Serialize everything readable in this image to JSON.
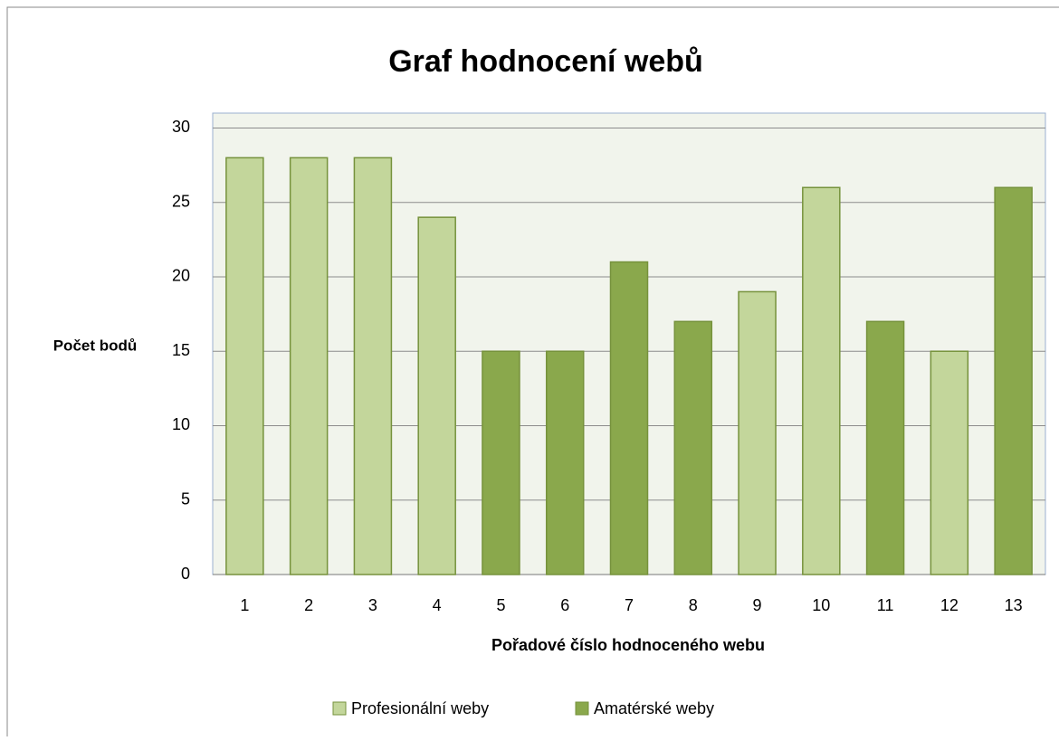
{
  "chart_data": {
    "type": "bar",
    "title": "Graf hodnocení webů",
    "xlabel": "Pořadové číslo hodnoceného webu",
    "ylabel": "Počet bodů",
    "categories": [
      "1",
      "2",
      "3",
      "4",
      "5",
      "6",
      "7",
      "8",
      "9",
      "10",
      "11",
      "12",
      "13"
    ],
    "series": [
      {
        "name": "Profesionální weby",
        "color": "#c3d69b",
        "values": [
          28,
          28,
          28,
          24,
          null,
          null,
          null,
          null,
          19,
          26,
          null,
          15,
          null
        ]
      },
      {
        "name": "Amatérské weby",
        "color": "#8aa84c",
        "values": [
          null,
          null,
          null,
          null,
          15,
          15,
          21,
          17,
          null,
          null,
          17,
          null,
          26
        ]
      }
    ],
    "ylim": [
      0,
      31
    ],
    "yticks": [
      0,
      5,
      10,
      15,
      20,
      25,
      30
    ],
    "grid": true,
    "legend": "bottom"
  }
}
